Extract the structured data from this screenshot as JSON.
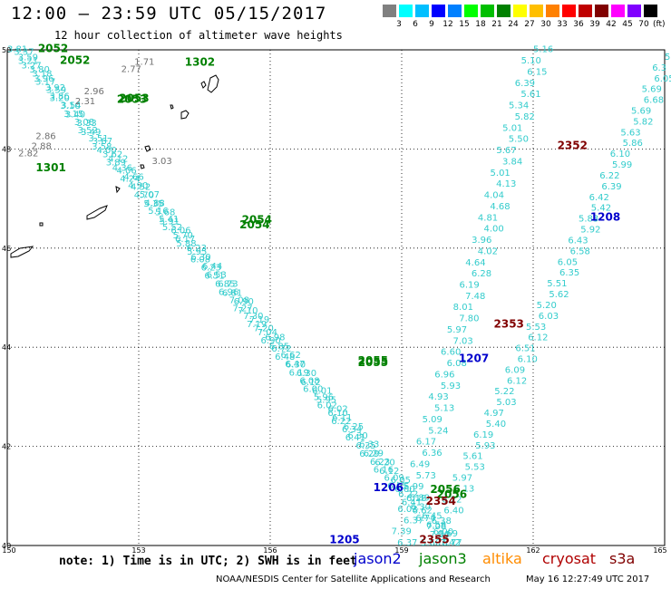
{
  "title": "12:00 – 23:59 UTC 05/15/2017",
  "subtitle": "12 hour collection of altimeter wave heights",
  "legend": {
    "colors": [
      "#808080",
      "#00ffff",
      "#00bfff",
      "#0000ff",
      "#0080ff",
      "#00ff00",
      "#00bf00",
      "#008000",
      "#ffff00",
      "#ffbf00",
      "#ff8000",
      "#ff0000",
      "#bf0000",
      "#800000",
      "#ff00ff",
      "#8000ff",
      "#000000"
    ],
    "labels": [
      "3",
      "6",
      "9",
      "12",
      "15",
      "18",
      "21",
      "24",
      "27",
      "30",
      "33",
      "36",
      "39",
      "42",
      "45",
      "70"
    ],
    "unit": "(ft)"
  },
  "map": {
    "lat_labels": [
      "50",
      "48",
      "46",
      "44",
      "42",
      "40"
    ],
    "lon_labels": [
      "150",
      "153",
      "156",
      "159",
      "162",
      "165"
    ],
    "track_labels": [
      {
        "text": "2052",
        "lat": 49.95,
        "lon": 150.7,
        "color": "#008000"
      },
      {
        "text": "2052",
        "lat": 49.72,
        "lon": 151.2,
        "color": "#008000"
      },
      {
        "text": "1302",
        "lat": 49.68,
        "lon": 154.05,
        "color": "#008000"
      },
      {
        "text": "2053",
        "lat": 48.95,
        "lon": 152.55,
        "color": "#008000"
      },
      {
        "text": "2053",
        "lat": 48.93,
        "lon": 152.5,
        "color": "#008000"
      },
      {
        "text": "1301",
        "lat": 47.55,
        "lon": 150.65,
        "color": "#008000"
      },
      {
        "text": "2054",
        "lat": 46.5,
        "lon": 155.35,
        "color": "#008000"
      },
      {
        "text": "2054",
        "lat": 46.4,
        "lon": 155.3,
        "color": "#008000"
      },
      {
        "text": "2055",
        "lat": 43.66,
        "lon": 158.0,
        "color": "#008000"
      },
      {
        "text": "2055",
        "lat": 43.62,
        "lon": 158.0,
        "color": "#008000"
      },
      {
        "text": "2056",
        "lat": 41.06,
        "lon": 159.65,
        "color": "#008000"
      },
      {
        "text": "2056",
        "lat": 40.96,
        "lon": 159.8,
        "color": "#008000"
      },
      {
        "text": "2352",
        "lat": 48.0,
        "lon": 162.55,
        "color": "#800000"
      },
      {
        "text": "2353",
        "lat": 44.4,
        "lon": 161.1,
        "color": "#800000"
      },
      {
        "text": "2354",
        "lat": 40.82,
        "lon": 159.55,
        "color": "#800000"
      },
      {
        "text": "2355",
        "lat": 40.05,
        "lon": 159.4,
        "color": "#800000"
      },
      {
        "text": "1208",
        "lat": 46.55,
        "lon": 163.3,
        "color": "#0000cc"
      },
      {
        "text": "1207",
        "lat": 43.7,
        "lon": 160.3,
        "color": "#0000cc"
      },
      {
        "text": "1206",
        "lat": 41.1,
        "lon": 158.35,
        "color": "#0000cc"
      },
      {
        "text": "1205",
        "lat": 40.05,
        "lon": 157.35,
        "color": "#0000cc"
      }
    ],
    "gray_values": [
      {
        "text": "1.71",
        "lat": 49.7,
        "lon": 152.9
      },
      {
        "text": "2.77",
        "lat": 49.55,
        "lon": 152.6
      },
      {
        "text": "2.96",
        "lat": 49.1,
        "lon": 151.75
      },
      {
        "text": "2.31",
        "lat": 48.9,
        "lon": 151.55
      },
      {
        "text": "2.86",
        "lat": 48.2,
        "lon": 150.65
      },
      {
        "text": "2.88",
        "lat": 48.0,
        "lon": 150.55
      },
      {
        "text": "2.82",
        "lat": 47.85,
        "lon": 150.25
      },
      {
        "text": "3.03",
        "lat": 47.7,
        "lon": 153.3
      }
    ],
    "track_a": {
      "from": [
        49.95,
        150.0
      ],
      "to": [
        40.0,
        159.8
      ],
      "values": [
        "3.81",
        "3.59",
        "3.27",
        "3.18",
        "3.17",
        "3.59",
        "3.20",
        "3.10",
        "3.15",
        "3.08",
        "3.52",
        "3.51",
        "3.58",
        "3.62",
        "3.89",
        "4.06",
        "4.24",
        "4.52",
        "4.70",
        "4.88",
        "5.16",
        "5.41",
        "5.52",
        "5.70",
        "5.88",
        "5.95",
        "6.08",
        "6.23",
        "6.51",
        "6.85",
        "6.96",
        "7.08",
        "7.27",
        "7.30",
        "7.19",
        "7.04",
        "6.90",
        "6.72",
        "6.48",
        "6.30",
        "6.19",
        "6.08",
        "6.00",
        "5.96",
        "6.02",
        "6.10",
        "6.22",
        "6.34",
        "6.41",
        "6.35",
        "6.29",
        "6.23",
        "6.16",
        "6.09",
        "6.05",
        "6.22",
        "6.41",
        "6.62",
        "6.74",
        "7.08",
        "7.30",
        "7.42"
      ]
    },
    "track_b": {
      "from": [
        49.9,
        150.15
      ],
      "to": [
        40.0,
        160.0
      ],
      "values": [
        "3.37",
        "3.21",
        "3.80",
        "3.96",
        "3.92",
        "3.86",
        "3.54",
        "3.40",
        "3.33",
        "3.49",
        "3.67",
        "4.00",
        "4.12",
        "4.36",
        "4.66",
        "4.90",
        "5.07",
        "5.35",
        "5.68",
        "5.91",
        "6.06",
        "6.17",
        "6.23",
        "6.30",
        "6.44",
        "6.53",
        "6.73",
        "6.81",
        "6.90",
        "7.10",
        "7.19",
        "7.20",
        "6.98",
        "6.85",
        "6.62",
        "6.47",
        "6.30",
        "6.12",
        "6.01",
        "5.95",
        "6.02",
        "6.11",
        "6.25",
        "6.30",
        "6.33",
        "6.29",
        "6.20",
        "6.12",
        "6.05",
        "6.00",
        "6.18",
        "6.30",
        "6.45",
        "6.58",
        "6.69",
        "6.77"
      ]
    },
    "track_c": {
      "from": [
        49.95,
        162.0
      ],
      "to": [
        40.0,
        158.9
      ],
      "values": [
        "5.16",
        "5.10",
        "6.15",
        "6.39",
        "5.61",
        "5.34",
        "5.82",
        "5.01",
        "5.50",
        "5.67",
        "3.84",
        "5.01",
        "4.13",
        "4.04",
        "4.68",
        "4.81",
        "4.00",
        "3.96",
        "4.02",
        "4.64",
        "6.28",
        "6.19",
        "7.48",
        "8.01",
        "7.80",
        "5.97",
        "7.03",
        "6.60",
        "6.08",
        "6.96",
        "5.93",
        "4.93",
        "5.13",
        "5.09",
        "5.24",
        "6.17",
        "6.36",
        "6.49",
        "5.73",
        "5.99",
        "5.89",
        "6.03",
        "6.37",
        "7.39",
        "6.37"
      ]
    },
    "track_d": {
      "from": [
        49.8,
        165.0
      ],
      "to": [
        40.0,
        159.6
      ],
      "values": [
        "5",
        "6.3",
        "6.05",
        "5.69",
        "6.68",
        "5.69",
        "5.82",
        "5.63",
        "5.86",
        "6.10",
        "5.99",
        "6.22",
        "6.39",
        "6.42",
        "5.42",
        "5.83",
        "5.92",
        "6.43",
        "6.58",
        "6.05",
        "6.35",
        "5.51",
        "5.62",
        "5.20",
        "6.03",
        "5.53",
        "6.12",
        "6.51",
        "6.10",
        "6.09",
        "6.12",
        "5.22",
        "5.03",
        "4.97",
        "5.40",
        "6.19",
        "5.93",
        "5.61",
        "5.53",
        "5.97",
        "6.13",
        "6.22",
        "6.40",
        "6.38",
        "6.00",
        "5.60"
      ]
    }
  },
  "note": "note:  1) Time is in UTC; 2) SWH is in feet",
  "satellites": [
    {
      "name": "jason2",
      "color": "#0000cc"
    },
    {
      "name": "jason3",
      "color": "#008000"
    },
    {
      "name": "altika",
      "color": "#ff8c00"
    },
    {
      "name": "cryosat",
      "color": "#b00000"
    },
    {
      "name": "s3a",
      "color": "#800000"
    }
  ],
  "credit": "NOAA/NESDIS Center for Satellite Applications and Research",
  "timestamp": "May 16 12:27:49 UTC 2017"
}
